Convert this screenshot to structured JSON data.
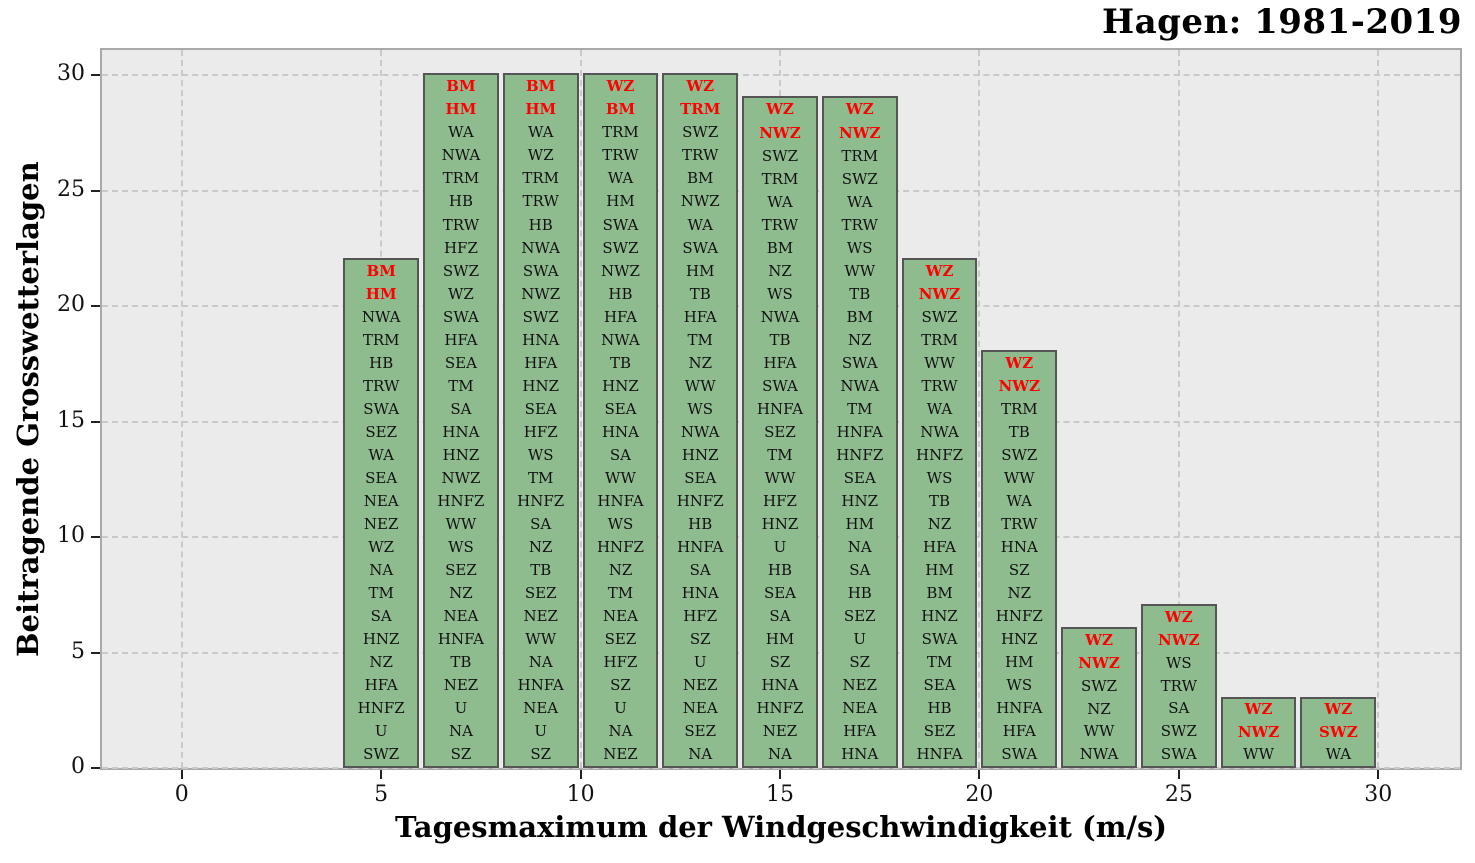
{
  "chart_data": {
    "type": "bar",
    "title": "Hagen: 1981-2019",
    "xlabel": "Tagesmaximum der Windgeschwindigkeit (m/s)",
    "ylabel": "Beitragende Grosswetterlagen",
    "x_ticks": [
      0,
      5,
      10,
      15,
      20,
      25,
      30
    ],
    "y_ticks": [
      0,
      5,
      10,
      15,
      20,
      25,
      30
    ],
    "xlim": [
      -2,
      32.05
    ],
    "ylim": [
      0,
      31.1
    ],
    "bar_width": 1.8,
    "grid": "dashed, both axes",
    "legend": "none",
    "highlight_first_n": 2,
    "colors": {
      "plot_bg": "#ebebeb",
      "grid_line": "#c9c9c9",
      "spine": "#a9a9a9",
      "bar_fill": "#8fbc8f",
      "bar_edge": "#555555",
      "label_text": "#111111",
      "highlight_text": "#ff0000"
    },
    "bars": [
      {
        "x": 5,
        "height": 22,
        "labels": [
          "BM",
          "HM",
          "NWA",
          "TRM",
          "HB",
          "TRW",
          "SWA",
          "SEZ",
          "WA",
          "SEA",
          "NEA",
          "NEZ",
          "WZ",
          "NA",
          "TM",
          "SA",
          "HNZ",
          "NZ",
          "HFA",
          "HNFZ",
          "U",
          "SWZ"
        ]
      },
      {
        "x": 7,
        "height": 30,
        "labels": [
          "BM",
          "HM",
          "WA",
          "NWA",
          "TRM",
          "HB",
          "TRW",
          "HFZ",
          "SWZ",
          "WZ",
          "SWA",
          "HFA",
          "SEA",
          "TM",
          "SA",
          "HNA",
          "HNZ",
          "NWZ",
          "HNFZ",
          "WW",
          "WS",
          "SEZ",
          "NZ",
          "NEA",
          "HNFA",
          "TB",
          "NEZ",
          "U",
          "NA",
          "SZ"
        ]
      },
      {
        "x": 9,
        "height": 30,
        "labels": [
          "BM",
          "HM",
          "WA",
          "WZ",
          "TRM",
          "TRW",
          "HB",
          "NWA",
          "SWA",
          "NWZ",
          "SWZ",
          "HNA",
          "HFA",
          "HNZ",
          "SEA",
          "HFZ",
          "WS",
          "TM",
          "HNFZ",
          "SA",
          "NZ",
          "TB",
          "SEZ",
          "NEZ",
          "WW",
          "NA",
          "HNFA",
          "NEA",
          "U",
          "SZ"
        ]
      },
      {
        "x": 11,
        "height": 30,
        "labels": [
          "WZ",
          "BM",
          "TRM",
          "TRW",
          "WA",
          "HM",
          "SWA",
          "SWZ",
          "NWZ",
          "HB",
          "HFA",
          "NWA",
          "TB",
          "HNZ",
          "SEA",
          "HNA",
          "SA",
          "WW",
          "HNFA",
          "WS",
          "HNFZ",
          "NZ",
          "TM",
          "NEA",
          "SEZ",
          "HFZ",
          "SZ",
          "U",
          "NA",
          "NEZ"
        ]
      },
      {
        "x": 13,
        "height": 30,
        "labels": [
          "WZ",
          "TRM",
          "SWZ",
          "TRW",
          "BM",
          "NWZ",
          "WA",
          "SWA",
          "HM",
          "TB",
          "HFA",
          "TM",
          "NZ",
          "WW",
          "WS",
          "NWA",
          "HNZ",
          "SEA",
          "HNFZ",
          "HB",
          "HNFA",
          "SA",
          "HNA",
          "HFZ",
          "SZ",
          "U",
          "NEZ",
          "NEA",
          "SEZ",
          "NA"
        ]
      },
      {
        "x": 15,
        "height": 29,
        "labels": [
          "WZ",
          "NWZ",
          "SWZ",
          "TRM",
          "WA",
          "TRW",
          "BM",
          "NZ",
          "WS",
          "NWA",
          "TB",
          "HFA",
          "SWA",
          "HNFA",
          "SEZ",
          "TM",
          "WW",
          "HFZ",
          "HNZ",
          "U",
          "HB",
          "SEA",
          "SA",
          "HM",
          "SZ",
          "HNA",
          "HNFZ",
          "NEZ",
          "NA"
        ]
      },
      {
        "x": 17,
        "height": 29,
        "labels": [
          "WZ",
          "NWZ",
          "TRM",
          "SWZ",
          "WA",
          "TRW",
          "WS",
          "WW",
          "TB",
          "BM",
          "NZ",
          "SWA",
          "NWA",
          "TM",
          "HNFA",
          "HNFZ",
          "SEA",
          "HNZ",
          "HM",
          "NA",
          "SA",
          "HB",
          "SEZ",
          "U",
          "SZ",
          "NEZ",
          "NEA",
          "HFA",
          "HNA"
        ]
      },
      {
        "x": 19,
        "height": 22,
        "labels": [
          "WZ",
          "NWZ",
          "SWZ",
          "TRM",
          "WW",
          "TRW",
          "WA",
          "NWA",
          "HNFZ",
          "WS",
          "TB",
          "NZ",
          "HFA",
          "HM",
          "BM",
          "HNZ",
          "SWA",
          "TM",
          "SEA",
          "HB",
          "SEZ",
          "HNFA"
        ]
      },
      {
        "x": 21,
        "height": 18,
        "labels": [
          "WZ",
          "NWZ",
          "TRM",
          "TB",
          "SWZ",
          "WW",
          "WA",
          "TRW",
          "HNA",
          "SZ",
          "NZ",
          "HNFZ",
          "HNZ",
          "HM",
          "WS",
          "HNFA",
          "HFA",
          "SWA"
        ]
      },
      {
        "x": 23,
        "height": 6,
        "labels": [
          "WZ",
          "NWZ",
          "SWZ",
          "NZ",
          "WW",
          "NWA"
        ]
      },
      {
        "x": 25,
        "height": 7,
        "labels": [
          "WZ",
          "NWZ",
          "WS",
          "TRW",
          "SA",
          "SWZ",
          "SWA"
        ]
      },
      {
        "x": 27,
        "height": 3,
        "labels": [
          "WZ",
          "NWZ",
          "WW"
        ]
      },
      {
        "x": 29,
        "height": 3,
        "labels": [
          "WZ",
          "SWZ",
          "WA"
        ]
      }
    ]
  }
}
